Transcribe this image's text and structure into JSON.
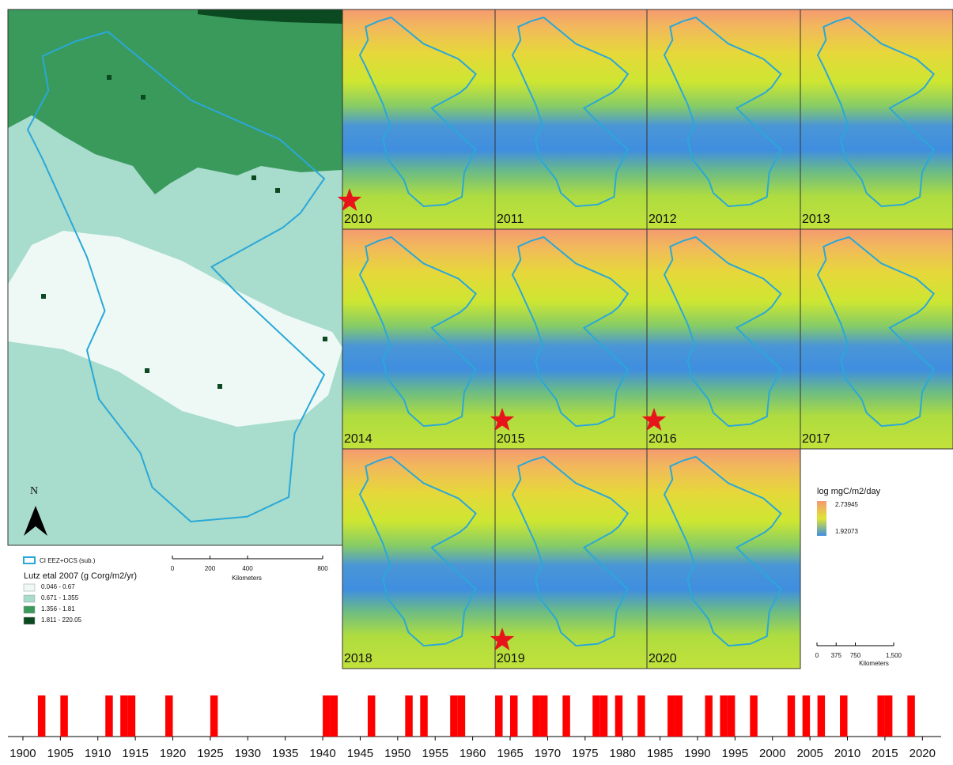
{
  "left_map": {
    "north_label": "N",
    "legend": {
      "boundary_label": "CI EEZ+OCS (sub.)",
      "title": "Lutz etal 2007 (g Corg/m2/yr)",
      "classes": [
        {
          "label": "0.046 - 0.67",
          "color": "#eef9f6"
        },
        {
          "label": "0.671 - 1.355",
          "color": "#a8dccd"
        },
        {
          "label": "1.356 - 1.81",
          "color": "#3a9a5c"
        },
        {
          "label": "1.811 - 220.05",
          "color": "#0b4a20"
        }
      ]
    },
    "scale_bar": {
      "ticks": [
        0,
        200,
        400,
        800
      ],
      "unit": "Kilometers"
    }
  },
  "panels": [
    {
      "label": "2010",
      "star": true
    },
    {
      "label": "2011",
      "star": false
    },
    {
      "label": "2012",
      "star": false
    },
    {
      "label": "2013",
      "star": false
    },
    {
      "label": "2014",
      "star": false
    },
    {
      "label": "2015",
      "star": true
    },
    {
      "label": "2016",
      "star": true
    },
    {
      "label": "2017",
      "star": false
    },
    {
      "label": "2018",
      "star": false
    },
    {
      "label": "2019",
      "star": true
    },
    {
      "label": "2020",
      "star": false
    }
  ],
  "panel_legend": {
    "title": "log mgC/m2/day",
    "high_label": "2.73945",
    "low_label": "1.92073"
  },
  "panel_scale_bar": {
    "ticks": [
      0,
      375,
      750,
      {
        "value": 1500,
        "label": "1,500"
      }
    ],
    "unit": "Kilometers"
  },
  "chart_data": {
    "type": "event",
    "color": "#ff0000",
    "x": [
      1902,
      1905,
      1911,
      1913,
      1914,
      1919,
      1925,
      1940,
      1941,
      1946,
      1951,
      1953,
      1957,
      1958,
      1963,
      1965,
      1968,
      1969,
      1972,
      1976,
      1977,
      1979,
      1982,
      1986,
      1987,
      1991,
      1993,
      1994,
      1997,
      2002,
      2004,
      2006,
      2009,
      2014,
      2015,
      2018
    ],
    "xlim": [
      1898,
      2022.5
    ],
    "xticks": [
      1900,
      1905,
      1910,
      1915,
      1920,
      1925,
      1930,
      1935,
      1940,
      1945,
      1950,
      1955,
      1960,
      1965,
      1970,
      1975,
      1980,
      1985,
      1990,
      1995,
      2000,
      2005,
      2010,
      2015,
      2020
    ]
  }
}
